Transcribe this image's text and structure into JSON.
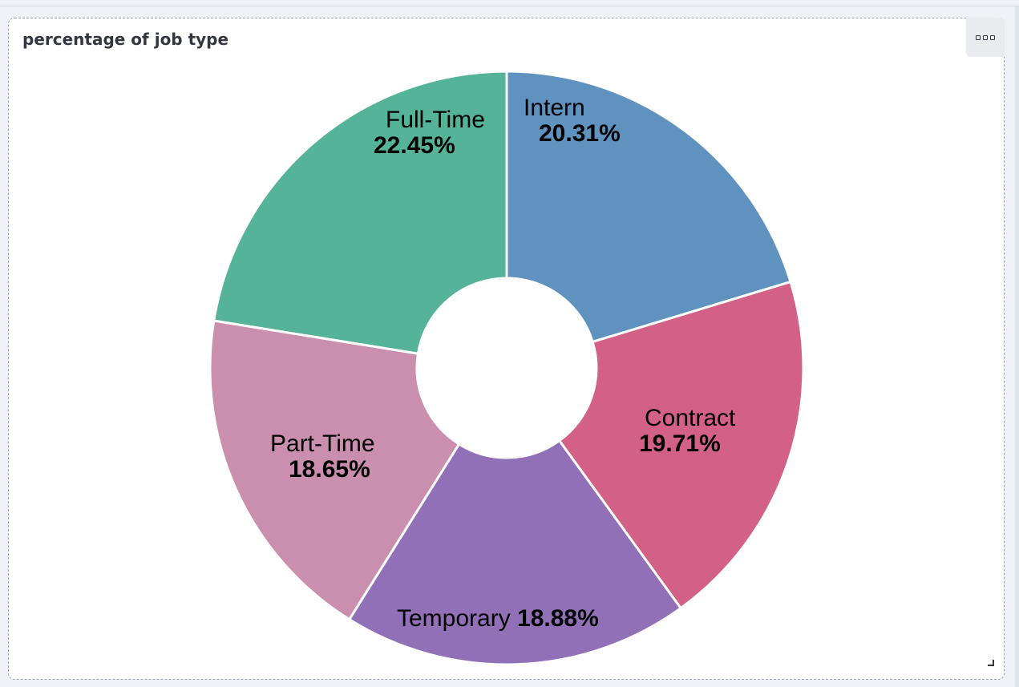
{
  "panel": {
    "title": "percentage of job type",
    "menu_icon": "options-dots-icon",
    "resize_icon": "resize-corner-icon"
  },
  "chart_data": {
    "type": "pie",
    "donut": true,
    "title": "percentage of job type",
    "slices": [
      {
        "label": "Intern",
        "percent_text": "20.31%",
        "value": 20.31,
        "color": "#6092c0"
      },
      {
        "label": "Contract",
        "percent_text": "19.71%",
        "value": 19.71,
        "color": "#d36086"
      },
      {
        "label": "Temporary",
        "percent_text": "18.88%",
        "value": 18.88,
        "color": "#9170b8"
      },
      {
        "label": "Part-Time",
        "percent_text": "18.65%",
        "value": 18.65,
        "color": "#ca8eae"
      },
      {
        "label": "Full-Time",
        "percent_text": "22.45%",
        "value": 22.45,
        "color": "#54b399"
      }
    ]
  }
}
